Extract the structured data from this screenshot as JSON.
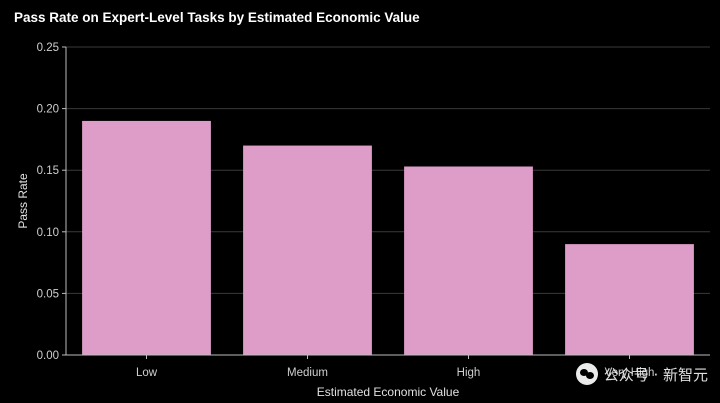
{
  "chart_data": {
    "type": "bar",
    "title": "Pass Rate on Expert-Level Tasks by Estimated Economic Value",
    "xlabel": "Estimated Economic Value",
    "ylabel": "Pass Rate",
    "categories": [
      "Low",
      "Medium",
      "High",
      "Very High"
    ],
    "values": [
      0.19,
      0.17,
      0.153,
      0.09
    ],
    "ylim": [
      0,
      0.25
    ],
    "yticks": [
      "0.00",
      "0.05",
      "0.10",
      "0.15",
      "0.20",
      "0.25"
    ],
    "grid": true,
    "bar_color": "#dd9dc8",
    "background": "#000000"
  },
  "watermark": {
    "text": "公众号 · 新智元",
    "icon": "wechat-icon"
  }
}
